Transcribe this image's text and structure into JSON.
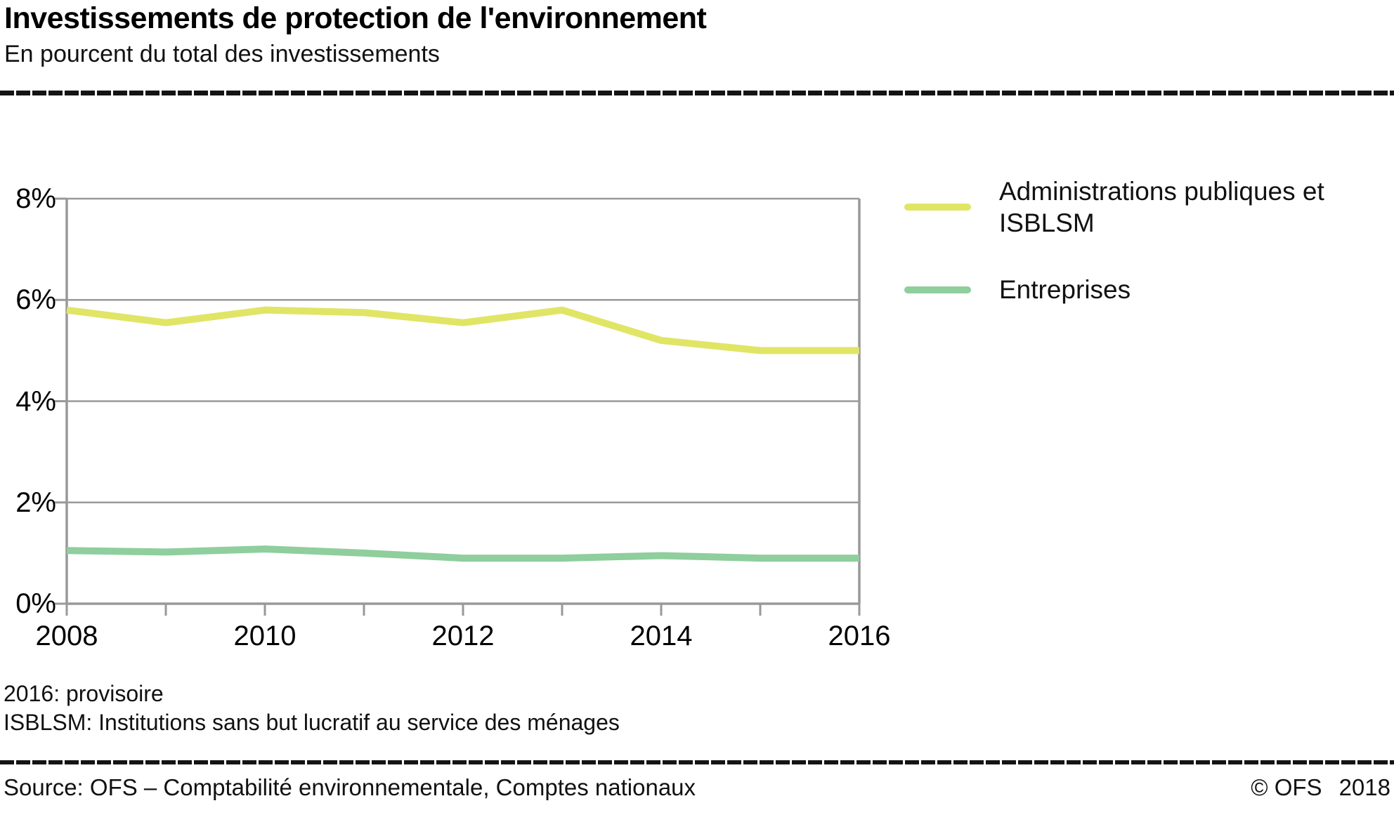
{
  "header": {
    "title": "Investissements de protection de l'environnement",
    "subtitle": "En pourcent du total des investissements"
  },
  "chart_data": {
    "type": "line",
    "x": [
      2008,
      2009,
      2010,
      2011,
      2012,
      2013,
      2014,
      2015,
      2016
    ],
    "series": [
      {
        "name": "Administrations publiques et ISBLSM",
        "color": "#e0e566",
        "values": [
          5.8,
          5.55,
          5.8,
          5.75,
          5.55,
          5.8,
          5.2,
          5.0,
          5.0
        ]
      },
      {
        "name": "Entreprises",
        "color": "#8fce9d",
        "values": [
          1.05,
          1.02,
          1.08,
          1.0,
          0.9,
          0.9,
          0.95,
          0.9,
          0.9
        ]
      }
    ],
    "ylim": [
      0,
      8
    ],
    "yticks": [
      0,
      2,
      4,
      6,
      8
    ],
    "ytick_labels": [
      "0%",
      "2%",
      "4%",
      "6%",
      "8%"
    ],
    "xticks_minor": [
      2008,
      2009,
      2010,
      2011,
      2012,
      2013,
      2014,
      2015,
      2016
    ],
    "xticks_labeled": [
      2008,
      2010,
      2012,
      2014,
      2016
    ],
    "xtick_labels": [
      "2008",
      "2010",
      "2012",
      "2014",
      "2016"
    ],
    "grid": true,
    "legend_position": "right",
    "axis_color": "#999999",
    "title": "Investissements de protection de l'environnement",
    "subtitle": "En pourcent du total des investissements"
  },
  "notes": [
    "2016: provisoire",
    "ISBLSM: Institutions sans but lucratif au service des ménages"
  ],
  "footer": {
    "source": "Source: OFS – Comptabilité environnementale, Comptes nationaux",
    "copyright": "© OFS",
    "year": "2018"
  }
}
